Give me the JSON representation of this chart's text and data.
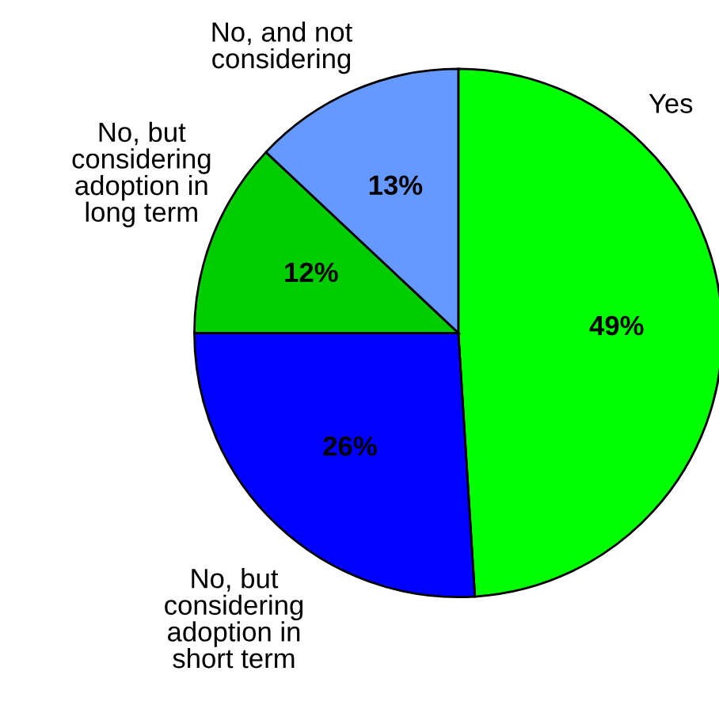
{
  "chart_data": {
    "type": "pie",
    "categories": [
      "Yes",
      "No, but considering adoption in short term",
      "No, but considering adoption in long term",
      "No, and not considering"
    ],
    "values": [
      49,
      26,
      12,
      13
    ],
    "colors": [
      "#00ff00",
      "#0000ff",
      "#00cc00",
      "#6699ff"
    ],
    "value_labels": [
      "49%",
      "26%",
      "12%",
      "13%"
    ]
  }
}
